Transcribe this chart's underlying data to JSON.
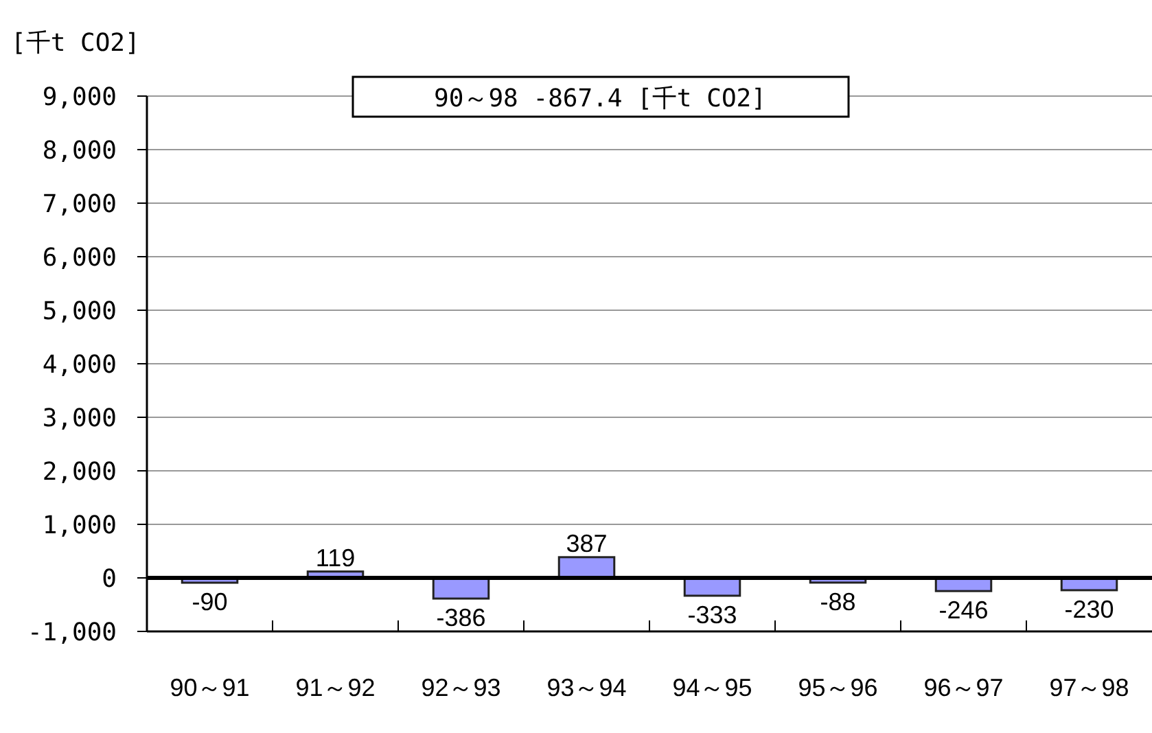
{
  "chart_data": {
    "type": "bar",
    "ylabel": "[千t CO2]",
    "annotations": [
      "90～98 -867.4 [千t CO2]"
    ],
    "categories": [
      "90～91",
      "91～92",
      "92～93",
      "93～94",
      "94～95",
      "95～96",
      "96～97",
      "97～98"
    ],
    "values": [
      -90,
      119,
      -386,
      387,
      -333,
      -88,
      -246,
      -230
    ],
    "color": "#9999ff",
    "ylim": [
      -1000,
      9000
    ],
    "yticks": [
      {
        "value": -1000,
        "label": "-1,000"
      },
      0,
      {
        "value": 1000,
        "label": "1,000"
      },
      {
        "value": 2000,
        "label": "2,000"
      },
      {
        "value": 3000,
        "label": "3,000"
      },
      {
        "value": 4000,
        "label": "4,000"
      },
      {
        "value": 5000,
        "label": "5,000"
      },
      {
        "value": 6000,
        "label": "6,000"
      },
      {
        "value": 7000,
        "label": "7,000"
      },
      {
        "value": 8000,
        "label": "8,000"
      },
      {
        "value": 9000,
        "label": "9,000"
      }
    ],
    "grid": "y",
    "data_labels": true
  }
}
